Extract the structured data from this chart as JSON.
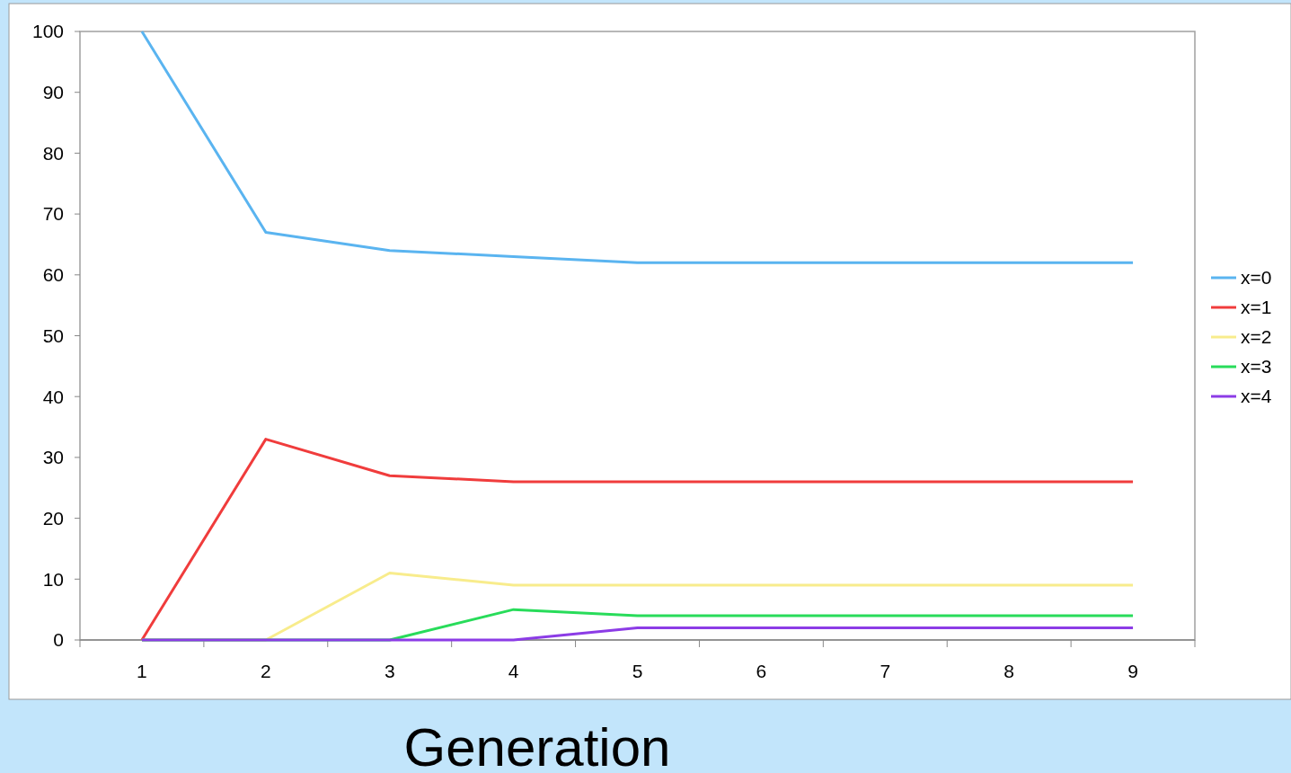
{
  "chart_data": {
    "type": "line",
    "xlabel": "Generation",
    "categories": [
      "1",
      "2",
      "3",
      "4",
      "5",
      "6",
      "7",
      "8",
      "9"
    ],
    "series": [
      {
        "name": "x=0",
        "color": "#5ab4f0",
        "values": [
          100,
          67,
          64,
          63,
          62,
          62,
          62,
          62,
          62
        ]
      },
      {
        "name": "x=1",
        "color": "#f03c3c",
        "values": [
          0,
          33,
          27,
          26,
          26,
          26,
          26,
          26,
          26
        ]
      },
      {
        "name": "x=2",
        "color": "#f8ec8c",
        "values": [
          0,
          0,
          11,
          9,
          9,
          9,
          9,
          9,
          9
        ]
      },
      {
        "name": "x=3",
        "color": "#28dc5a",
        "values": [
          0,
          0,
          0,
          5,
          4,
          4,
          4,
          4,
          4
        ]
      },
      {
        "name": "x=4",
        "color": "#8c3ce6",
        "values": [
          0,
          0,
          0,
          0,
          2,
          2,
          2,
          2,
          2
        ]
      }
    ],
    "ylim": [
      0,
      100
    ],
    "yticks": [
      0,
      10,
      20,
      30,
      40,
      50,
      60,
      70,
      80,
      90,
      100
    ],
    "legend": "right",
    "grid": false,
    "marker": "none",
    "line_style": "solid"
  }
}
